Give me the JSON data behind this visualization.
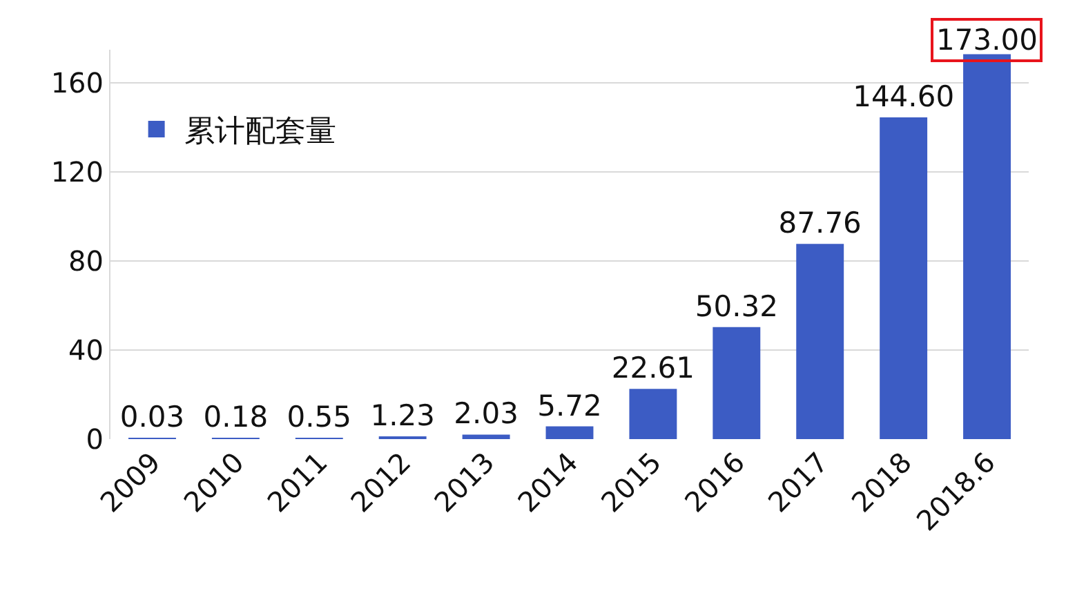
{
  "chart_data": {
    "type": "bar",
    "categories": [
      "2009",
      "2010",
      "2011",
      "2012",
      "2013",
      "2014",
      "2015",
      "2016",
      "2017",
      "2018",
      "2018.6"
    ],
    "series": [
      {
        "name": "累计配套量",
        "color": "#3c5cc4",
        "values": [
          0.03,
          0.18,
          0.55,
          1.23,
          2.03,
          5.72,
          22.61,
          50.32,
          87.76,
          144.6,
          173.0
        ],
        "value_labels": [
          "0.03",
          "0.18",
          "0.55",
          "1.23",
          "2.03",
          "5.72",
          "22.61",
          "50.32",
          "87.76",
          "144.60",
          null
        ]
      }
    ],
    "annotations": [
      {
        "text": "173.00",
        "x": "2018.6",
        "y": 173
      }
    ],
    "ylim": [
      0,
      175
    ],
    "yticks": [
      0,
      40,
      80,
      120,
      160
    ],
    "grid": "y",
    "legend": "top left"
  }
}
